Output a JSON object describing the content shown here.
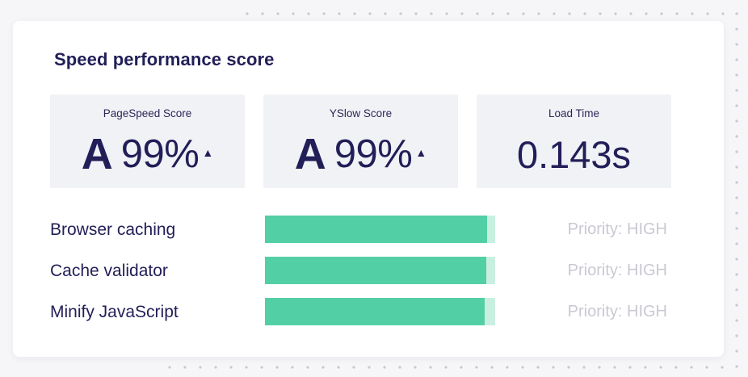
{
  "colors": {
    "background": "#f6f6f8",
    "card": "#ffffff",
    "text_primary": "#221e58",
    "score_box": "#f1f2f6",
    "bar_fill": "#53cfa6",
    "bar_track": "#c9efe1",
    "priority_text": "#c8c9d3"
  },
  "card": {
    "title": "Speed performance score"
  },
  "scores": {
    "pagespeed": {
      "label": "PageSpeed Score",
      "grade": "A",
      "percent": "99%",
      "trend_icon": "up-triangle-icon",
      "trend_glyph": "▲"
    },
    "yslow": {
      "label": "YSlow Score",
      "grade": "A",
      "percent": "99%",
      "trend_icon": "up-triangle-icon",
      "trend_glyph": "▲"
    },
    "load_time": {
      "label": "Load Time",
      "value": "0.143s"
    }
  },
  "recommendations": [
    {
      "label": "Browser caching",
      "progress": 0.965,
      "priority": "Priority: HIGH"
    },
    {
      "label": "Cache validator",
      "progress": 0.96,
      "priority": "Priority: HIGH"
    },
    {
      "label": "Minify JavaScript",
      "progress": 0.955,
      "priority": "Priority: HIGH"
    }
  ]
}
